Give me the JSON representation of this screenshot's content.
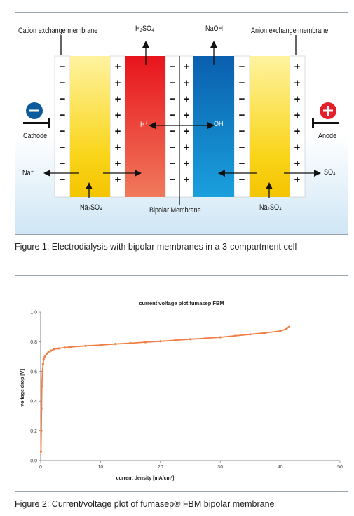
{
  "figure1": {
    "labels": {
      "cation_membrane": "Cation exchange membrane",
      "anion_membrane": "Anion exchange membrane",
      "h2so4": "H₂SO₄",
      "naoh": "NaOH",
      "cathode": "Cathode",
      "anode": "Anode",
      "h_plus": "H⁺",
      "oh": "OH",
      "na_plus": "Na⁺",
      "so4": "SO₄",
      "na2so4_left": "Na₂SO₄",
      "na2so4_right": "Na₂SO₄",
      "bipolar": "Bipolar Membrane"
    },
    "minus_glyph": "−",
    "plus_glyph": "+",
    "colors": {
      "yellow": "#f7d10a",
      "red": "#ed2b24",
      "blue": "#0a6fbe",
      "cathode": "#0c5b9c",
      "anode": "#e41f2b"
    },
    "caption": "Figure 1: Electrodialysis with bipolar membranes in a 3-compartment cell"
  },
  "figure2": {
    "caption": "Figure 2: Current/voltage plot of fumasep® FBM bipolar membrane"
  },
  "chart_data": {
    "type": "line",
    "title": "current voltage plot fumasep FBM",
    "xlabel": "current density [mA/cm²]",
    "ylabel": "voltage drop [V]",
    "xlim": [
      0,
      50
    ],
    "ylim": [
      0,
      1.0
    ],
    "xticks": [
      "0",
      "10",
      "20",
      "30",
      "40",
      "50"
    ],
    "yticks": [
      "0,0",
      "0,2",
      "0,4",
      "0,6",
      "0,8",
      "1,0"
    ],
    "grid": false,
    "color": "#f07f45",
    "x": [
      0.05,
      0.1,
      0.15,
      0.2,
      0.3,
      0.4,
      0.5,
      0.7,
      1.0,
      1.3,
      1.7,
      2.2,
      3.0,
      4.0,
      5.0,
      7.5,
      10,
      12.5,
      15,
      17.5,
      20,
      22.5,
      25,
      27.5,
      30,
      32.5,
      35,
      37.5,
      40,
      41,
      41.5
    ],
    "y": [
      0.06,
      0.2,
      0.35,
      0.5,
      0.6,
      0.65,
      0.68,
      0.7,
      0.72,
      0.73,
      0.74,
      0.75,
      0.755,
      0.76,
      0.765,
      0.772,
      0.778,
      0.785,
      0.79,
      0.797,
      0.803,
      0.81,
      0.817,
      0.823,
      0.83,
      0.84,
      0.85,
      0.86,
      0.872,
      0.885,
      0.9
    ]
  }
}
